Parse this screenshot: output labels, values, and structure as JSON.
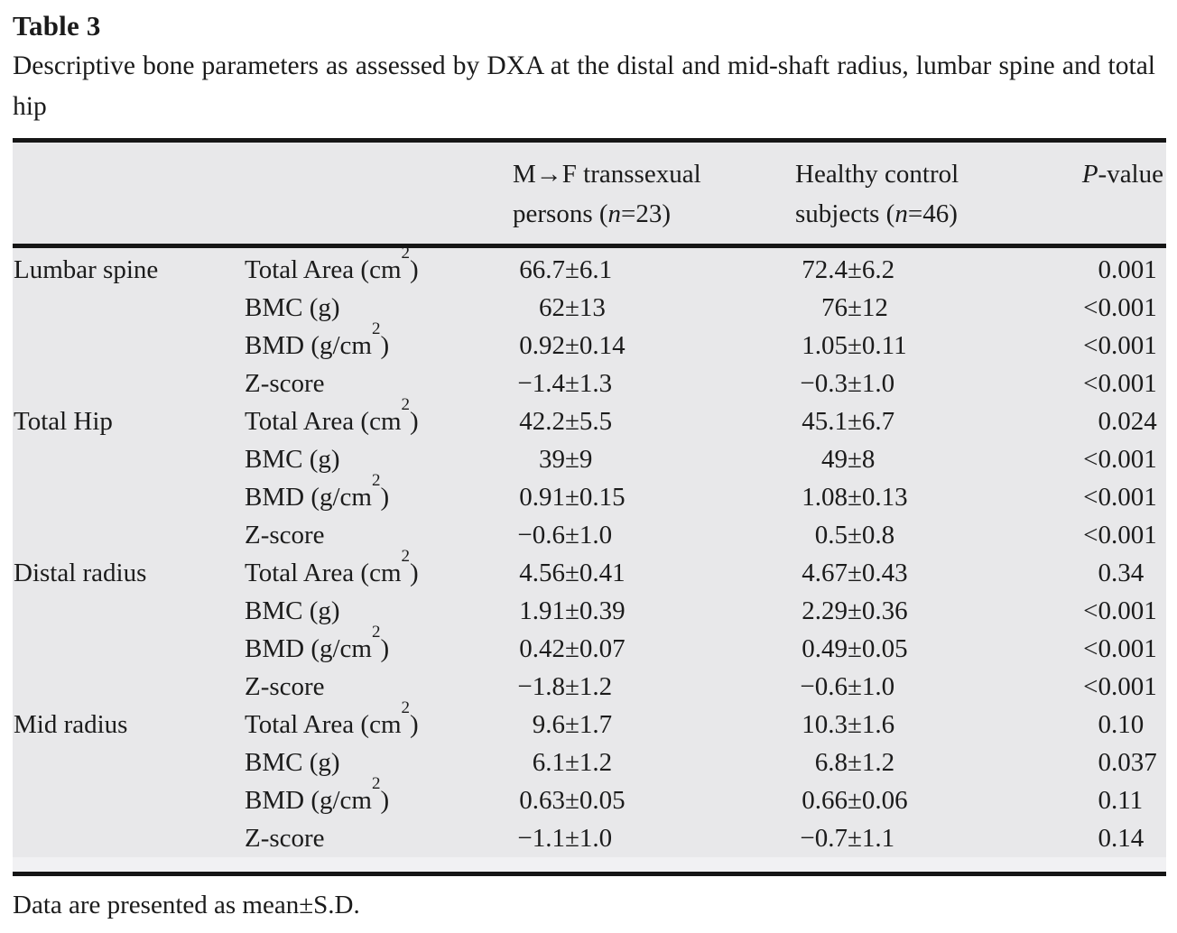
{
  "colors": {
    "table_bg": "#e8e8ea",
    "band_bg": "#f1f1f3",
    "rule": "#161616",
    "text": "#1b1b1b"
  },
  "title": "Table 3",
  "caption": "Descriptive bone parameters as assessed by DXA at the distal and mid-shaft radius, lumbar spine and total hip",
  "header": {
    "mf": {
      "line1": "M→F transsexual",
      "line2_pre": "persons (",
      "n": "n",
      "line2_post": "=23)"
    },
    "hc": {
      "line1": "Healthy control",
      "line2_pre": "subjects (",
      "n": "n",
      "line2_post": "=46)"
    },
    "p": {
      "italic": "P",
      "rest": "-value"
    }
  },
  "groups": [
    {
      "region": "Lumbar spine",
      "rows": [
        {
          "param": {
            "pre": "Total Area (cm",
            "sup": "2",
            "post": ")"
          },
          "mf": "66.7±6.1",
          "hc": "72.4±6.2",
          "p": "0.001"
        },
        {
          "param": {
            "pre": "BMC (g)",
            "sup": "",
            "post": ""
          },
          "mf": "62±13",
          "hc": "76±12",
          "p": "<0.001"
        },
        {
          "param": {
            "pre": "BMD (g/cm",
            "sup": "2",
            "post": ")"
          },
          "mf": "0.92±0.14",
          "hc": "1.05±0.11",
          "p": "<0.001"
        },
        {
          "param": {
            "pre": "Z-score",
            "sup": "",
            "post": ""
          },
          "mf": "−1.4±1.3",
          "hc": "−0.3±1.0",
          "p": "<0.001"
        }
      ]
    },
    {
      "region": "Total Hip",
      "rows": [
        {
          "param": {
            "pre": "Total Area (cm",
            "sup": "2",
            "post": ")"
          },
          "mf": "42.2±5.5",
          "hc": "45.1±6.7",
          "p": "0.024"
        },
        {
          "param": {
            "pre": "BMC (g)",
            "sup": "",
            "post": ""
          },
          "mf": "39±9",
          "hc": "49±8",
          "p": "<0.001"
        },
        {
          "param": {
            "pre": "BMD (g/cm",
            "sup": "2",
            "post": ")"
          },
          "mf": "0.91±0.15",
          "hc": "1.08±0.13",
          "p": "<0.001"
        },
        {
          "param": {
            "pre": "Z-score",
            "sup": "",
            "post": ""
          },
          "mf": "−0.6±1.0",
          "hc": "0.5±0.8",
          "p": "<0.001"
        }
      ]
    },
    {
      "region": "Distal radius",
      "rows": [
        {
          "param": {
            "pre": "Total Area (cm",
            "sup": "2",
            "post": ")"
          },
          "mf": "4.56±0.41",
          "hc": "4.67±0.43",
          "p": "0.34"
        },
        {
          "param": {
            "pre": "BMC (g)",
            "sup": "",
            "post": ""
          },
          "mf": "1.91±0.39",
          "hc": "2.29±0.36",
          "p": "<0.001"
        },
        {
          "param": {
            "pre": "BMD (g/cm",
            "sup": "2",
            "post": ")"
          },
          "mf": "0.42±0.07",
          "hc": "0.49±0.05",
          "p": "<0.001"
        },
        {
          "param": {
            "pre": "Z-score",
            "sup": "",
            "post": ""
          },
          "mf": "−1.8±1.2",
          "hc": "−0.6±1.0",
          "p": "<0.001"
        }
      ]
    },
    {
      "region": "Mid radius",
      "rows": [
        {
          "param": {
            "pre": "Total Area (cm",
            "sup": "2",
            "post": ")"
          },
          "mf": "9.6±1.7",
          "hc": "10.3±1.6",
          "p": "0.10"
        },
        {
          "param": {
            "pre": "BMC (g)",
            "sup": "",
            "post": ""
          },
          "mf": "6.1±1.2",
          "hc": "6.8±1.2",
          "p": "0.037"
        },
        {
          "param": {
            "pre": "BMD (g/cm",
            "sup": "2",
            "post": ")"
          },
          "mf": "0.63±0.05",
          "hc": "0.66±0.06",
          "p": "0.11"
        },
        {
          "param": {
            "pre": "Z-score",
            "sup": "",
            "post": ""
          },
          "mf": "−1.1±1.0",
          "hc": "−0.7±1.1",
          "p": "0.14"
        }
      ]
    }
  ],
  "footnote": "Data are presented as mean±S.D."
}
